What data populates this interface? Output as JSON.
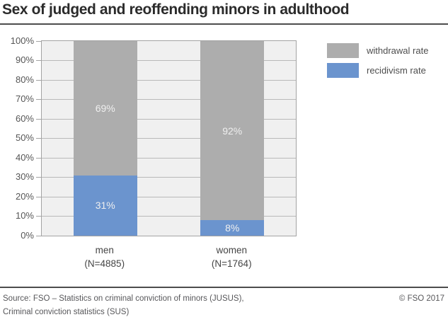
{
  "header": {
    "title": "Sex of judged and reoffending minors in adulthood"
  },
  "chart_data": {
    "type": "bar",
    "stacked": true,
    "title": "Sex of judged and reoffending minors in adulthood",
    "categories": [
      "men",
      "women"
    ],
    "category_sublabels": [
      "(N=4885)",
      "(N=1764)"
    ],
    "series": [
      {
        "name": "recidivism rate",
        "key": "recidivism-rate",
        "color": "#6b94ce",
        "values": [
          31,
          8
        ],
        "labels": [
          "31%",
          "8%"
        ]
      },
      {
        "name": "withdrawal rate",
        "key": "withdrawal-rate",
        "color": "#adadad",
        "values": [
          69,
          92
        ],
        "labels": [
          "69%",
          "92%"
        ]
      }
    ],
    "ylim": [
      0,
      100
    ],
    "ytick_step": 10,
    "yticklabels": [
      "0%",
      "10%",
      "20%",
      "30%",
      "40%",
      "50%",
      "60%",
      "70%",
      "80%",
      "90%",
      "100%"
    ],
    "grid": true,
    "legend_position": "top-right",
    "plot_background": "#f0f0f0",
    "gridline_color": "#b9b9b9",
    "bar_label_color": "#efefef"
  },
  "legend": {
    "items": [
      {
        "label": "withdrawal rate",
        "color": "#adadad"
      },
      {
        "label": "recidivism rate",
        "color": "#6b94ce"
      }
    ]
  },
  "footer": {
    "source_line1": "Source: FSO – Statistics on criminal conviction of minors (JUSUS),",
    "source_line2": "Criminal conviction statistics (SUS)",
    "copyright": "© FSO 2017"
  }
}
